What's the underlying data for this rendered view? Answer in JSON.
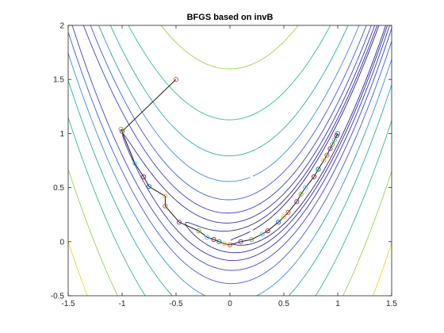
{
  "chart_data": {
    "type": "line",
    "title": "BFGS based on invB",
    "xlabel": "",
    "ylabel": "",
    "xlim": [
      -1.5,
      1.5
    ],
    "ylim": [
      -0.5,
      2
    ],
    "xticks": [
      -1.5,
      -1,
      -0.5,
      0,
      0.5,
      1,
      1.5
    ],
    "yticks": [
      -0.5,
      0,
      0.5,
      1,
      1.5,
      2
    ],
    "xtick_labels": [
      "-1.5",
      "-1",
      "-0.5",
      "0",
      "0.5",
      "1",
      "1.5"
    ],
    "ytick_labels": [
      "-0.5",
      "0",
      "0.5",
      "1",
      "1.5",
      "2"
    ],
    "grid": false,
    "legend": "none",
    "contour": {
      "function": "rosenbrock",
      "levels": [
        1,
        2,
        4,
        8,
        16,
        32,
        64,
        128,
        256,
        512
      ],
      "level_colors": [
        "#2a1f8f",
        "#2f2aa8",
        "#3530be",
        "#3a44d6",
        "#3f5ce8",
        "#3a8fe8",
        "#22b2a8",
        "#28c485",
        "#9bd44a",
        "#f0dd1c"
      ]
    },
    "path": {
      "color": "#000000",
      "points": [
        [
          -0.5,
          1.5
        ],
        [
          -1.0,
          1.02
        ],
        [
          -1.01,
          1.04
        ],
        [
          -0.88,
          0.72
        ],
        [
          -0.8,
          0.6
        ],
        [
          -0.75,
          0.51
        ],
        [
          -0.6,
          0.42
        ],
        [
          -0.6,
          0.33
        ],
        [
          -0.47,
          0.18
        ],
        [
          -0.29,
          0.1
        ],
        [
          -0.21,
          0.04
        ],
        [
          -0.15,
          0.02
        ],
        [
          -0.1,
          0.0
        ],
        [
          -0.05,
          -0.02
        ],
        [
          0.0,
          -0.03
        ],
        [
          0.1,
          0.0
        ],
        [
          0.2,
          0.02
        ],
        [
          0.3,
          0.07
        ],
        [
          0.35,
          0.1
        ],
        [
          0.45,
          0.18
        ],
        [
          0.5,
          0.23
        ],
        [
          0.54,
          0.27
        ],
        [
          0.62,
          0.37
        ],
        [
          0.66,
          0.44
        ],
        [
          0.7,
          0.5
        ],
        [
          0.78,
          0.6
        ],
        [
          0.82,
          0.67
        ],
        [
          0.87,
          0.75
        ],
        [
          0.9,
          0.8
        ],
        [
          0.93,
          0.86
        ],
        [
          0.95,
          0.9
        ],
        [
          0.97,
          0.94
        ],
        [
          0.99,
          0.98
        ],
        [
          1.0,
          1.0
        ]
      ],
      "marker_colors": [
        "#d95319",
        "#7e2f8e",
        "#77ac30",
        "#4dbeee",
        "#a2142f",
        "#0072bd",
        "#edb120"
      ]
    }
  }
}
